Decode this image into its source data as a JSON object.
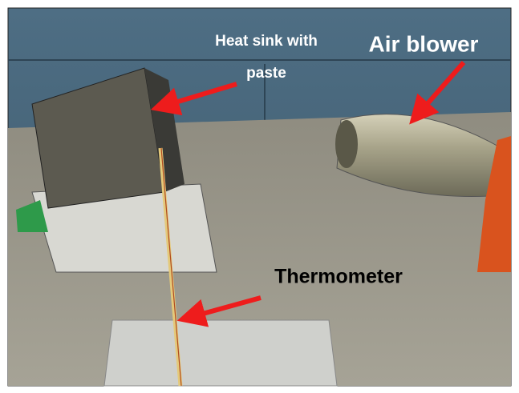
{
  "annotations": [
    {
      "lines": [
        "Heat sink with",
        "paste"
      ]
    },
    {
      "lines": [
        "Air blower"
      ]
    },
    {
      "lines": [
        "Thermometer"
      ]
    }
  ]
}
